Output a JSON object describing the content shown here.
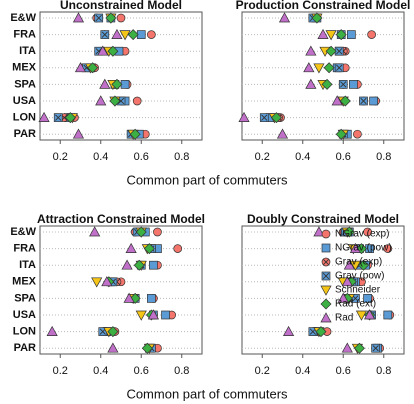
{
  "chart_data": [
    {
      "type": "dot",
      "title": "Unconstrained Model",
      "xlabel": "Common part of commuters",
      "categories": [
        "E&W",
        "FRA",
        "ITA",
        "MEX",
        "SPA",
        "USA",
        "LON",
        "PAR"
      ],
      "xlim": [
        0.1,
        0.9
      ],
      "xticks": [
        0.2,
        0.4,
        0.6,
        0.8
      ],
      "series": [
        {
          "color": "#f4756b",
          "marker": "circle",
          "values": [
            0.5,
            0.65,
            0.52,
            0.37,
            0.53,
            0.58,
            0.27,
            0.62
          ]
        },
        {
          "color": "#5b9bd5",
          "marker": "square",
          "values": [
            0.45,
            0.6,
            0.49,
            0.35,
            0.52,
            0.52,
            0.24,
            0.59
          ]
        },
        {
          "color": "#f4756b",
          "marker": "circle-x",
          "values": [
            0.38,
            0.42,
            0.4,
            0.31,
            0.47,
            0.5,
            0.22,
            0.55
          ]
        },
        {
          "color": "#5b9bd5",
          "marker": "square-x",
          "values": [
            0.39,
            0.42,
            0.39,
            0.33,
            0.47,
            0.5,
            0.19,
            0.55
          ]
        },
        {
          "color": "#f5c518",
          "marker": "triangle-down",
          "values": [
            0.45,
            0.52,
            0.44,
            0.35,
            0.46,
            0.47,
            0.26,
            0.56
          ]
        },
        {
          "color": "#3cb043",
          "marker": "diamond",
          "values": [
            0.45,
            0.56,
            0.46,
            0.36,
            0.48,
            0.47,
            0.25,
            0.57
          ]
        },
        {
          "color": "#c070c8",
          "marker": "triangle-up",
          "values": [
            0.29,
            0.48,
            0.41,
            0.3,
            0.42,
            0.4,
            0.12,
            0.29
          ]
        }
      ]
    },
    {
      "type": "dot",
      "title": "Production Constrained Model",
      "xlim": [
        0.1,
        0.9
      ],
      "xticks": [
        0.2,
        0.4,
        0.6,
        0.8
      ],
      "series": [
        {
          "color": "#f4756b",
          "marker": "circle",
          "values": [
            0.47,
            0.74,
            0.61,
            0.61,
            0.67,
            0.76,
            0.29,
            0.67
          ]
        },
        {
          "color": "#5b9bd5",
          "marker": "square",
          "values": [
            0.47,
            0.64,
            0.58,
            0.57,
            0.65,
            0.75,
            0.24,
            0.62
          ]
        },
        {
          "color": "#f4756b",
          "marker": "circle-x",
          "values": [
            0.45,
            0.59,
            0.6,
            0.58,
            0.6,
            0.7,
            0.28,
            0.6
          ]
        },
        {
          "color": "#5b9bd5",
          "marker": "square-x",
          "values": [
            0.45,
            0.59,
            0.58,
            0.58,
            0.6,
            0.7,
            0.21,
            0.6
          ]
        },
        {
          "color": "#f5c518",
          "marker": "triangle-down",
          "values": [
            0.47,
            0.54,
            0.51,
            0.48,
            0.5,
            0.6,
            0.26,
            0.6
          ]
        },
        {
          "color": "#3cb043",
          "marker": "diamond",
          "values": [
            0.47,
            0.59,
            0.54,
            0.53,
            0.52,
            0.61,
            0.27,
            0.59
          ]
        },
        {
          "color": "#c070c8",
          "marker": "triangle-up",
          "values": [
            0.31,
            0.5,
            0.44,
            0.43,
            0.44,
            0.57,
            0.11,
            0.3
          ]
        }
      ]
    },
    {
      "type": "dot",
      "title": "Attraction Constrained Model",
      "xlabel": "Common part of commuters",
      "categories": [
        "E&W",
        "FRA",
        "ITA",
        "MEX",
        "SPA",
        "USA",
        "LON",
        "PAR"
      ],
      "xlim": [
        0.1,
        0.9
      ],
      "xticks": [
        0.2,
        0.4,
        0.6,
        0.8
      ],
      "series": [
        {
          "color": "#f4756b",
          "marker": "circle",
          "values": [
            0.68,
            0.78,
            0.68,
            0.5,
            0.66,
            0.75,
            0.47,
            0.68
          ]
        },
        {
          "color": "#5b9bd5",
          "marker": "square",
          "values": [
            0.62,
            0.68,
            0.66,
            0.45,
            0.65,
            0.72,
            0.43,
            0.64
          ]
        },
        {
          "color": "#f4756b",
          "marker": "circle-x",
          "values": [
            0.57,
            0.65,
            0.6,
            0.48,
            0.57,
            0.66,
            0.42,
            0.65
          ]
        },
        {
          "color": "#5b9bd5",
          "marker": "square-x",
          "values": [
            0.58,
            0.65,
            0.6,
            0.46,
            0.57,
            0.66,
            0.41,
            0.65
          ]
        },
        {
          "color": "#f5c518",
          "marker": "triangle-down",
          "values": [
            0.6,
            0.63,
            0.6,
            0.38,
            0.56,
            0.6,
            0.44,
            0.64
          ]
        },
        {
          "color": "#3cb043",
          "marker": "diamond",
          "values": [
            0.6,
            0.64,
            0.59,
            0.44,
            0.57,
            0.65,
            0.46,
            0.63
          ]
        },
        {
          "color": "#c070c8",
          "marker": "triangle-up",
          "values": [
            0.37,
            0.55,
            0.53,
            0.43,
            0.54,
            0.66,
            0.16,
            0.46
          ]
        }
      ]
    },
    {
      "type": "dot",
      "title": "Doubly Constrained Model",
      "legend": "top-right",
      "xlim": [
        0.1,
        0.9
      ],
      "xticks": [
        0.2,
        0.4,
        0.6,
        0.8
      ],
      "series": [
        {
          "name": "NGrav (exp)",
          "color": "#f4756b",
          "marker": "circle",
          "values": [
            0.72,
            0.82,
            0.72,
            0.69,
            0.73,
            0.83,
            0.52,
            0.78
          ]
        },
        {
          "name": "NGrav (pow)",
          "color": "#5b9bd5",
          "marker": "square",
          "values": [
            0.63,
            0.73,
            0.71,
            0.66,
            0.72,
            0.82,
            0.47,
            0.77
          ]
        },
        {
          "name": "Grav (exp)",
          "color": "#f4756b",
          "marker": "circle-x",
          "values": [
            0.6,
            0.68,
            0.68,
            0.64,
            0.66,
            0.74,
            0.46,
            0.76
          ]
        },
        {
          "name": "Grav (pow)",
          "color": "#5b9bd5",
          "marker": "square-x",
          "values": [
            0.61,
            0.68,
            0.68,
            0.65,
            0.66,
            0.74,
            0.45,
            0.76
          ]
        },
        {
          "name": "Schneider",
          "color": "#f5c518",
          "marker": "triangle-down",
          "values": [
            0.62,
            0.65,
            0.66,
            0.6,
            0.63,
            0.69,
            0.48,
            0.67
          ]
        },
        {
          "name": "Rad (ext)",
          "color": "#3cb043",
          "marker": "diamond",
          "values": [
            0.63,
            0.69,
            0.7,
            0.64,
            0.62,
            0.73,
            0.49,
            0.68
          ]
        },
        {
          "name": "Rad",
          "color": "#c070c8",
          "marker": "triangle-up",
          "values": [
            0.48,
            0.66,
            0.63,
            0.62,
            0.6,
            0.73,
            0.33,
            0.62
          ]
        }
      ]
    }
  ]
}
